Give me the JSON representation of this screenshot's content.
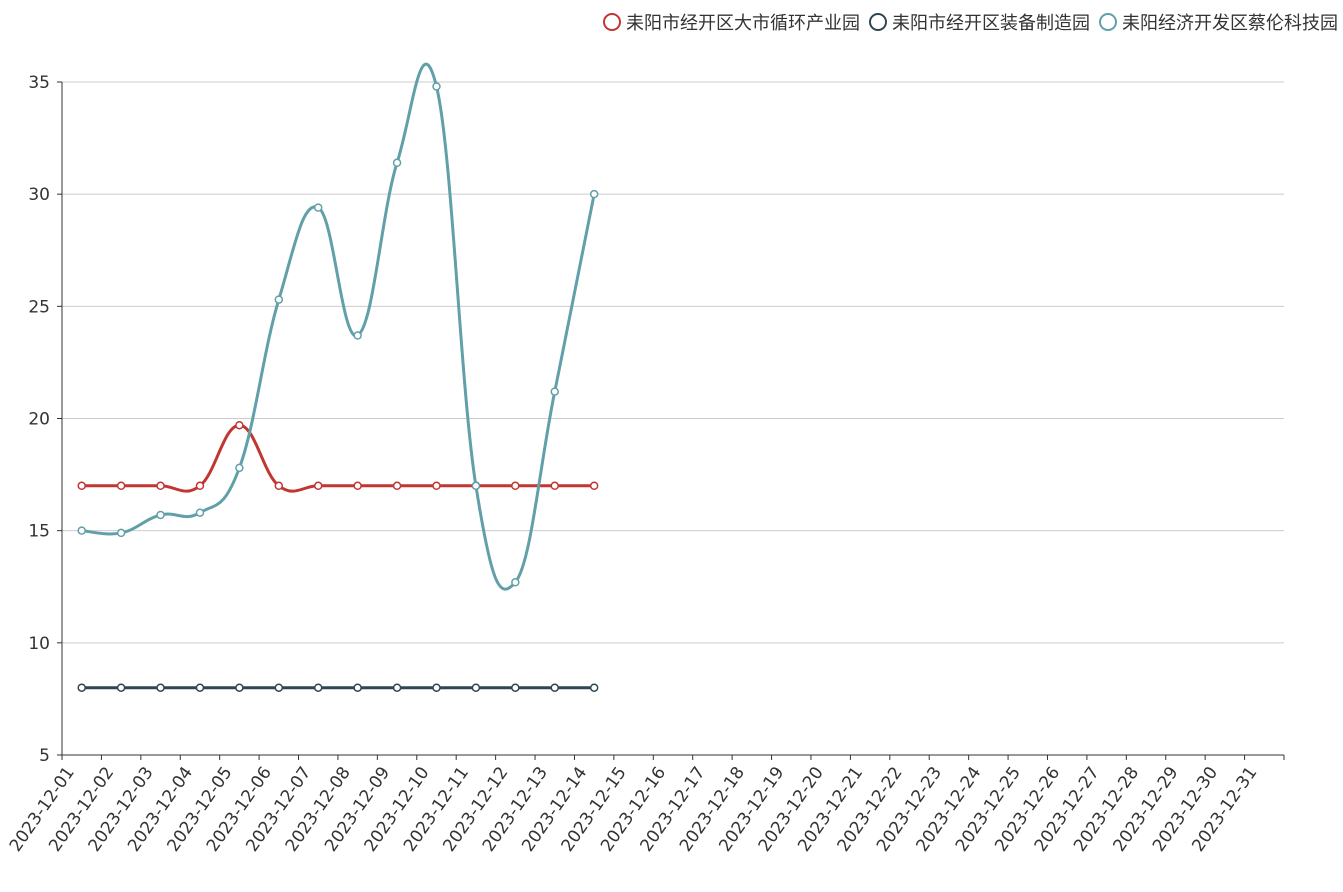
{
  "chart_data": {
    "type": "line",
    "smooth": true,
    "grid": true,
    "legend_position": "top-right",
    "categories": [
      "2023-12-01",
      "2023-12-02",
      "2023-12-03",
      "2023-12-04",
      "2023-12-05",
      "2023-12-06",
      "2023-12-07",
      "2023-12-08",
      "2023-12-09",
      "2023-12-10",
      "2023-12-11",
      "2023-12-12",
      "2023-12-13",
      "2023-12-14",
      "2023-12-15",
      "2023-12-16",
      "2023-12-17",
      "2023-12-18",
      "2023-12-19",
      "2023-12-20",
      "2023-12-21",
      "2023-12-22",
      "2023-12-23",
      "2023-12-24",
      "2023-12-25",
      "2023-12-26",
      "2023-12-27",
      "2023-12-28",
      "2023-12-29",
      "2023-12-30",
      "2023-12-31"
    ],
    "ylim": [
      5,
      35
    ],
    "yticks": [
      5,
      10,
      15,
      20,
      25,
      30,
      35
    ],
    "series": [
      {
        "name": "耒阳市经开区大市循环产业园",
        "color": "#c23531",
        "values": [
          17,
          17,
          17,
          17,
          19.7,
          17,
          17,
          17,
          17,
          17,
          17,
          17,
          17,
          17,
          null,
          null,
          null,
          null,
          null,
          null,
          null,
          null,
          null,
          null,
          null,
          null,
          null,
          null,
          null,
          null,
          null
        ]
      },
      {
        "name": "耒阳市经开区装备制造园",
        "color": "#2f4554",
        "values": [
          8,
          8,
          8,
          8,
          8,
          8,
          8,
          8,
          8,
          8,
          8,
          8,
          8,
          8,
          null,
          null,
          null,
          null,
          null,
          null,
          null,
          null,
          null,
          null,
          null,
          null,
          null,
          null,
          null,
          null,
          null
        ]
      },
      {
        "name": "耒阳经济开发区蔡伦科技园",
        "color": "#61a0a8",
        "values": [
          15,
          14.9,
          15.7,
          15.8,
          17.8,
          25.3,
          29.4,
          23.7,
          31.4,
          34.8,
          17,
          12.7,
          21.2,
          30,
          null,
          null,
          null,
          null,
          null,
          null,
          null,
          null,
          null,
          null,
          null,
          null,
          null,
          null,
          null,
          null,
          null
        ]
      }
    ]
  }
}
